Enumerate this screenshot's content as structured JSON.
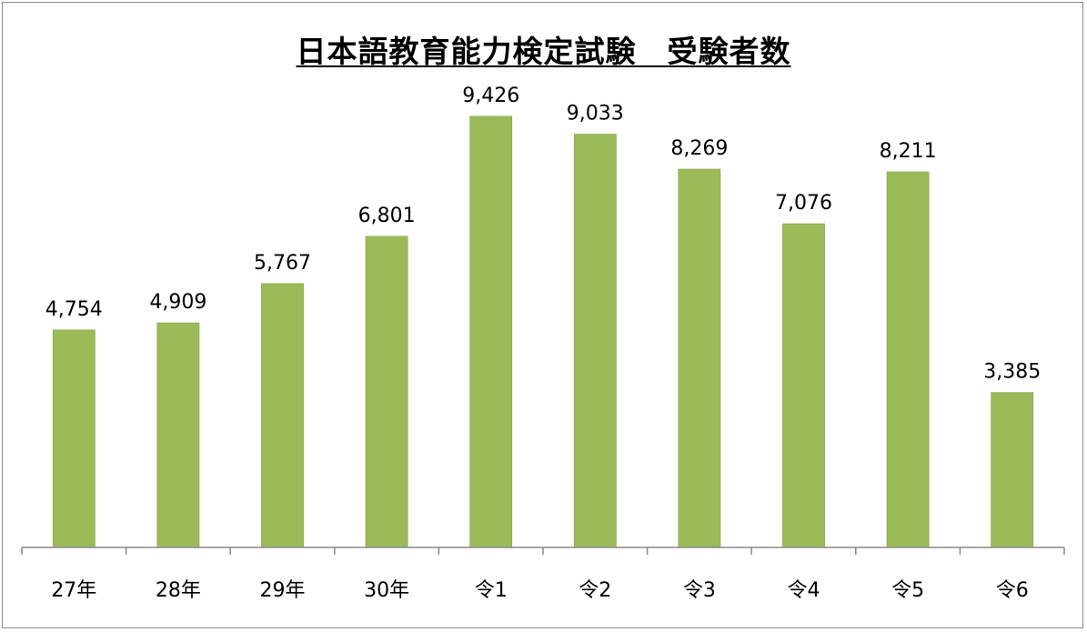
{
  "chart_data": {
    "type": "bar",
    "title": "日本語教育能力検定試験　受験者数",
    "categories": [
      "27年",
      "28年",
      "29年",
      "30年",
      "令1",
      "令2",
      "令3",
      "令4",
      "令5",
      "令6"
    ],
    "values": [
      4754,
      4909,
      5767,
      6801,
      9426,
      9033,
      8269,
      7076,
      8211,
      3385
    ],
    "data_labels": [
      "4,754",
      "4,909",
      "5,767",
      "6,801",
      "9,426",
      "9,033",
      "8,269",
      "7,076",
      "8,211",
      "3,385"
    ],
    "ylim": [
      0,
      12000
    ],
    "bar_color": "#9bbb59",
    "grid": false,
    "legend": "none"
  }
}
